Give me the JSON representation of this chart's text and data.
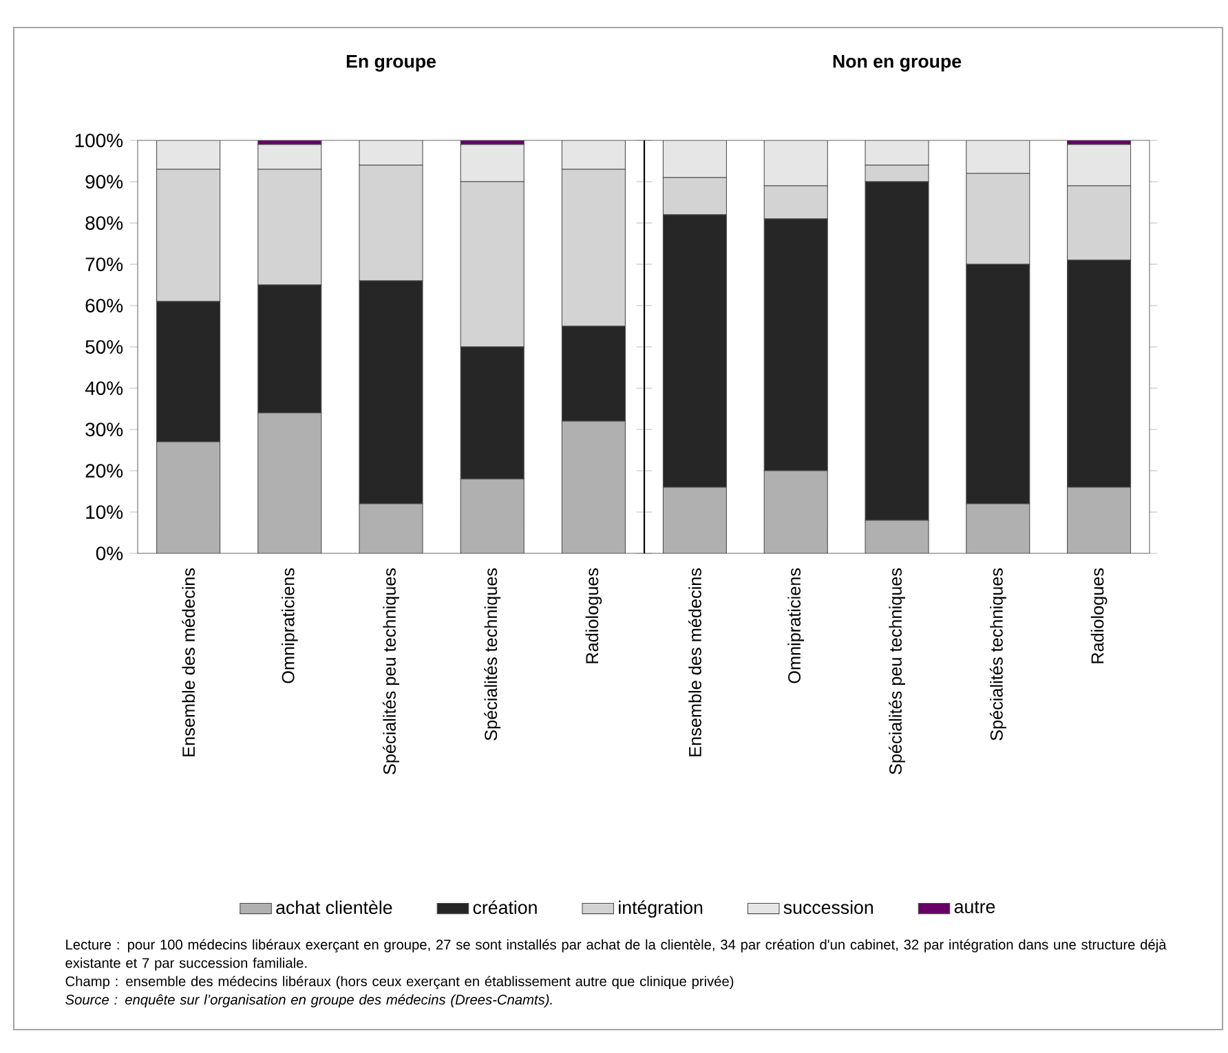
{
  "chart_data": [
    {
      "type": "bar",
      "title": "En groupe",
      "stacked": true,
      "legend": "bottom",
      "categories": [
        "Ensemble des médecins",
        "Omnipraticiens",
        "Spécialités peu techniques",
        "Spécialités techniques",
        "Radiologues"
      ],
      "ylim": [
        0,
        100
      ],
      "yticks": [
        {
          "value": 0,
          "label": "0%"
        },
        {
          "value": 10,
          "label": "10%"
        },
        {
          "value": 20,
          "label": "20%"
        },
        {
          "value": 30,
          "label": "30%"
        },
        {
          "value": 40,
          "label": "40%"
        },
        {
          "value": 50,
          "label": "50%"
        },
        {
          "value": 60,
          "label": "60%"
        },
        {
          "value": 70,
          "label": "70%"
        },
        {
          "value": 80,
          "label": "80%"
        },
        {
          "value": 90,
          "label": "90%"
        },
        {
          "value": 100,
          "label": "100%"
        }
      ],
      "series": [
        {
          "name": "achat clientèle",
          "color": "#b0b0b0",
          "values": [
            27,
            34,
            12,
            18,
            32
          ]
        },
        {
          "name": "création",
          "color": "#262626",
          "values": [
            34,
            31,
            54,
            32,
            23
          ]
        },
        {
          "name": "intégration",
          "color": "#d3d3d3",
          "values": [
            32,
            28,
            28,
            40,
            38
          ]
        },
        {
          "name": "succession",
          "color": "#e6e6e6",
          "values": [
            7,
            6,
            6,
            9,
            7
          ]
        },
        {
          "name": "autre",
          "color": "#660066",
          "values": [
            0,
            1,
            0,
            1,
            0
          ]
        }
      ],
      "annotations": [
        "Lecture : pour 100 médecins libéraux exerçant en groupe, 27 se sont installés par achat de la clientèle, 34 par création d'un cabinet, 32 par intégration dans une structure déjà existante et 7 par succession familiale.",
        "Champ : ensemble des médecins libéraux (hors ceux exerçant en établissement autre que clinique privée)",
        "Source : enquête sur l’organisation en groupe des médecins (Drees-Cnamts)."
      ]
    },
    {
      "type": "bar",
      "title": "Non en groupe",
      "stacked": true,
      "tick_labels": "x",
      "categories": [
        "Ensemble des médecins",
        "Omnipraticiens",
        "Spécialités peu techniques",
        "Spécialités techniques",
        "Radiologues"
      ],
      "ylim": [
        0,
        100
      ],
      "yticks": [
        0,
        10,
        20,
        30,
        40,
        50,
        60,
        70,
        80,
        90,
        100
      ],
      "series": [
        {
          "color": "#b0b0b0",
          "values": [
            16,
            20,
            8,
            12,
            16
          ]
        },
        {
          "color": "#262626",
          "values": [
            66,
            61,
            82,
            58,
            55
          ]
        },
        {
          "color": "#d3d3d3",
          "values": [
            9,
            8,
            4,
            22,
            18
          ]
        },
        {
          "color": "#e6e6e6",
          "values": [
            9,
            11,
            6,
            8,
            10
          ]
        },
        {
          "color": "#660066",
          "values": [
            0,
            0,
            0,
            0,
            1
          ]
        }
      ]
    }
  ]
}
